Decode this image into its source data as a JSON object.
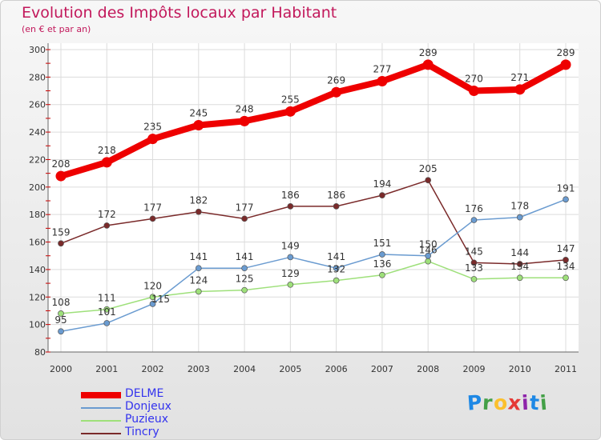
{
  "title": "Evolution des Impôts locaux par Habitant",
  "subtitle": "(en € et par an)",
  "logo": {
    "text": "Proxiti",
    "letters": [
      "P",
      "r",
      "o",
      "x",
      "i",
      "t",
      "i"
    ],
    "colors": [
      "#1e88e5",
      "#43a047",
      "#fbc02d",
      "#e53935",
      "#8e24aa",
      "#1e88e5",
      "#43a047"
    ]
  },
  "chart_data": {
    "type": "line",
    "x": [
      "2000",
      "2001",
      "2002",
      "2003",
      "2004",
      "2005",
      "2006",
      "2007",
      "2008",
      "2009",
      "2010",
      "2011"
    ],
    "ylim": [
      80,
      300
    ],
    "yticks": [
      80,
      100,
      120,
      140,
      160,
      180,
      200,
      220,
      240,
      260,
      280,
      300
    ],
    "grid": true,
    "legend_position": "bottom-left",
    "series": [
      {
        "name": "DELME",
        "color": "#ee0000",
        "values": [
          208,
          218,
          235,
          245,
          248,
          255,
          269,
          277,
          289,
          270,
          271,
          289
        ]
      },
      {
        "name": "Donjeux",
        "color": "#6a9bd0",
        "values": [
          95,
          101,
          115,
          141,
          141,
          149,
          141,
          151,
          150,
          176,
          178,
          191
        ]
      },
      {
        "name": "Puzieux",
        "color": "#9ee07a",
        "values": [
          108,
          111,
          120,
          124,
          125,
          129,
          132,
          136,
          146,
          133,
          134,
          134
        ]
      },
      {
        "name": "Tincry",
        "color": "#7a2a2a",
        "values": [
          159,
          172,
          177,
          182,
          177,
          186,
          186,
          194,
          205,
          145,
          144,
          147
        ]
      }
    ]
  }
}
